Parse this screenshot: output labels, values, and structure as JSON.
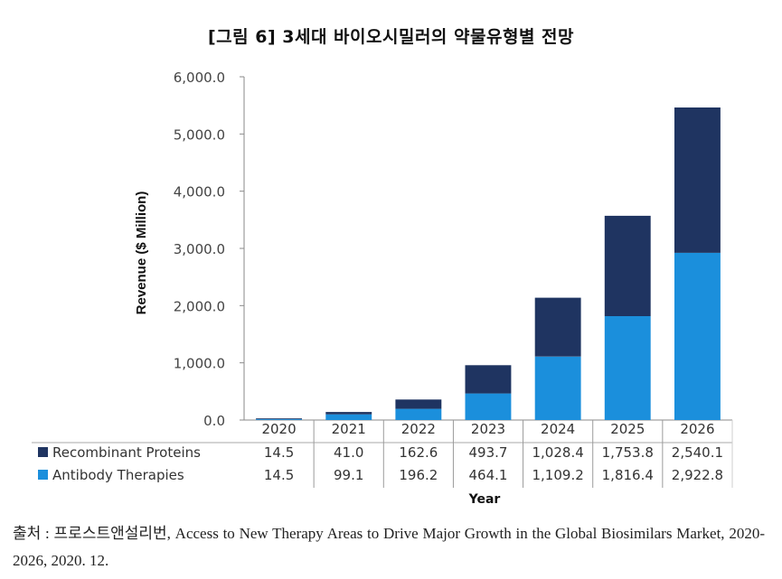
{
  "figure": {
    "title": "[그림 6] 3세대 바이오시밀러의 약물유형별 전망",
    "source": "출처 : 프로스트앤설리번, Access to New Therapy Areas to Drive Major Growth in the Global Biosimilars Market, 2020-2026, 2020. 12."
  },
  "chart_data": {
    "type": "bar",
    "stacked": true,
    "title": "",
    "xlabel": "Year",
    "ylabel": "Revenue ($ Million)",
    "ylim": [
      0,
      6000
    ],
    "yticks": [
      "0.0",
      "1,000.0",
      "2,000.0",
      "3,000.0",
      "4,000.0",
      "5,000.0",
      "6,000.0"
    ],
    "ytick_values": [
      0,
      1000,
      2000,
      3000,
      4000,
      5000,
      6000
    ],
    "grid": false,
    "legend": "data-table-left",
    "categories": [
      "2020",
      "2021",
      "2022",
      "2023",
      "2024",
      "2025",
      "2026"
    ],
    "series": [
      {
        "name": "Recombinant Proteins",
        "color": "#1f3461",
        "values": [
          14.5,
          41.0,
          162.6,
          493.7,
          1028.4,
          1753.8,
          2540.1
        ],
        "labels": [
          "14.5",
          "41.0",
          "162.6",
          "493.7",
          "1,028.4",
          "1,753.8",
          "2,540.1"
        ]
      },
      {
        "name": "Antibody Therapies",
        "color": "#1b8fdc",
        "values": [
          14.5,
          99.1,
          196.2,
          464.1,
          1109.2,
          1816.4,
          2922.8
        ],
        "labels": [
          "14.5",
          "99.1",
          "196.2",
          "464.1",
          "1,109.2",
          "1,816.4",
          "2,922.8"
        ]
      }
    ],
    "stack_order_bottom_to_top": [
      "Antibody Therapies",
      "Recombinant Proteins"
    ]
  }
}
